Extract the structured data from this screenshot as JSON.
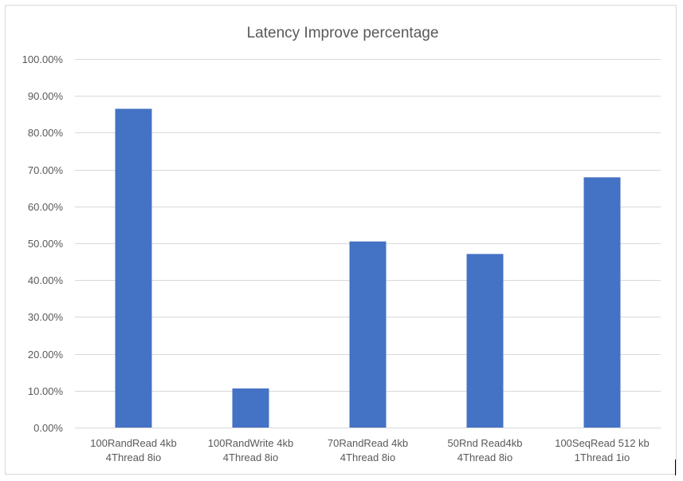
{
  "chart_data": {
    "type": "bar",
    "title": "Latency Improve percentage",
    "xlabel": "",
    "ylabel": "",
    "categories": [
      [
        "100RandRead 4kb",
        "4Thread 8io"
      ],
      [
        "100RandWrite 4kb",
        "4Thread 8io"
      ],
      [
        "70RandRead 4kb",
        "4Thread 8io"
      ],
      [
        "50Rnd Read4kb",
        "4Thread 8io"
      ],
      [
        "100SeqRead 512 kb",
        "1Thread 1io"
      ]
    ],
    "values": [
      86.5,
      10.6,
      50.5,
      47.1,
      67.9
    ],
    "ylim": [
      0,
      100
    ],
    "yticks": [
      "0.00%",
      "10.00%",
      "20.00%",
      "30.00%",
      "40.00%",
      "50.00%",
      "60.00%",
      "70.00%",
      "80.00%",
      "90.00%",
      "100.00%"
    ],
    "grid": true,
    "legend": "none",
    "bar_color": "#4472C4"
  }
}
